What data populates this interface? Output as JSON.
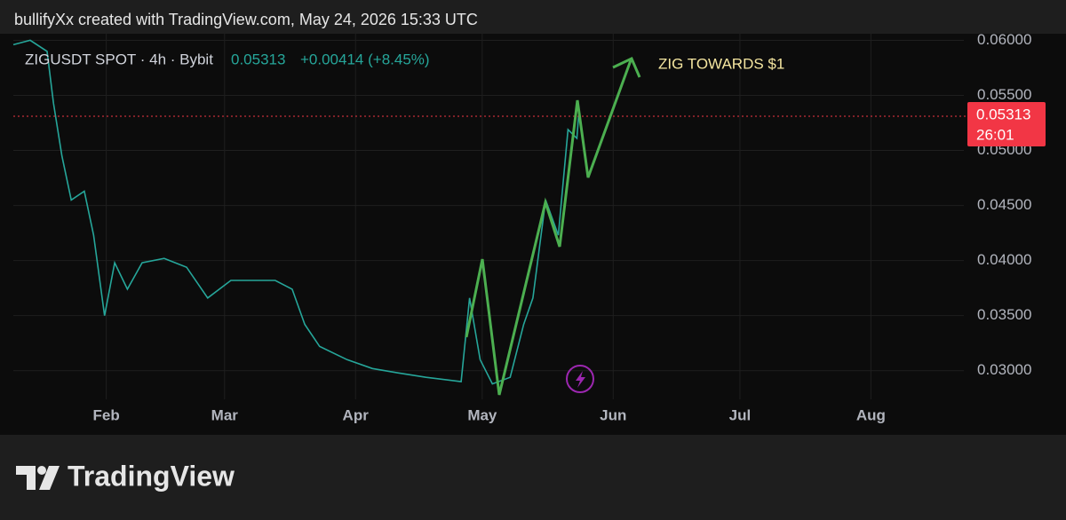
{
  "header": "bullifyXx created with TradingView.com, May 24, 2026 15:33 UTC",
  "chart_data": {
    "type": "line",
    "symbol": "ZIGUSDT SPOT · 4h · Bybit",
    "last_price": 0.05313,
    "change": "+0.00414 (+8.45%)",
    "countdown": "26:01",
    "annotation": "ZIG TOWARDS $1",
    "x": [
      10,
      14,
      18,
      19.5,
      21.5,
      23.7,
      26.8,
      29,
      31.6,
      34,
      37,
      40.5,
      45.7,
      51,
      56,
      61.5,
      67,
      72,
      76,
      79,
      82.5,
      89,
      95,
      101,
      107.7,
      116,
      118,
      120.5,
      123.4,
      127.6,
      130.8,
      133,
      136,
      139,
      141.3,
      143.4,
      143.8
    ],
    "series": [
      {
        "color": "#26a69a",
        "values": [
          0.0596,
          0.06,
          0.059,
          0.0543,
          0.0495,
          0.0455,
          0.0463,
          0.0423,
          0.035,
          0.0398,
          0.0374,
          0.0398,
          0.0402,
          0.0394,
          0.0366,
          0.0382,
          0.0382,
          0.0382,
          0.0374,
          0.0342,
          0.0322,
          0.031,
          0.0302,
          0.0298,
          0.0294,
          0.029,
          0.0366,
          0.031,
          0.0288,
          0.0294,
          0.0342,
          0.0366,
          0.0455,
          0.0423,
          0.0519,
          0.0511,
          0.05313
        ]
      }
    ],
    "xlim": [
      10,
      235
    ],
    "xticks": [
      {
        "value": 32,
        "label": "Feb"
      },
      {
        "value": 60,
        "label": "Mar"
      },
      {
        "value": 91,
        "label": "Apr"
      },
      {
        "value": 121,
        "label": "May"
      },
      {
        "value": 152,
        "label": "Jun"
      },
      {
        "value": 182,
        "label": "Jul"
      },
      {
        "value": 213,
        "label": "Aug"
      }
    ],
    "ylim": [
      0.0274,
      0.0606
    ],
    "yticks": [
      {
        "value": 0.03,
        "label": "0.03000"
      },
      {
        "value": 0.035,
        "label": "0.03500"
      },
      {
        "value": 0.04,
        "label": "0.04000"
      },
      {
        "value": 0.045,
        "label": "0.04500"
      },
      {
        "value": 0.05,
        "label": "0.05000"
      },
      {
        "value": 0.055,
        "label": "0.05500"
      },
      {
        "value": 0.06,
        "label": "0.06000"
      }
    ],
    "grid": true
  },
  "watermark": "TradingView"
}
